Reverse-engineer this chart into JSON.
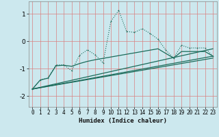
{
  "title": "",
  "xlabel": "Humidex (Indice chaleur)",
  "bg_color": "#cce8ee",
  "grid_color": "#d98080",
  "line_color": "#1a6b5a",
  "xlim": [
    -0.5,
    23.5
  ],
  "ylim": [
    -2.4,
    1.45
  ],
  "xticks": [
    0,
    1,
    2,
    3,
    4,
    5,
    6,
    7,
    8,
    9,
    10,
    11,
    12,
    13,
    14,
    15,
    16,
    17,
    18,
    19,
    20,
    21,
    22,
    23
  ],
  "yticks": [
    -2,
    -1,
    0,
    1
  ],
  "series1_x": [
    0,
    1,
    2,
    3,
    4,
    5,
    6,
    7,
    8,
    9,
    10,
    11,
    12,
    13,
    14,
    15,
    16,
    17,
    18,
    19,
    20,
    21,
    22,
    23
  ],
  "series1_y": [
    -1.75,
    -1.42,
    -1.35,
    -0.87,
    -0.87,
    -1.08,
    -0.52,
    -0.32,
    -0.5,
    -0.8,
    0.72,
    1.12,
    0.35,
    0.32,
    0.45,
    0.28,
    0.07,
    -0.33,
    -0.62,
    -0.15,
    -0.25,
    -0.25,
    -0.25,
    -0.55
  ],
  "series2_x": [
    0,
    1,
    2,
    3,
    4,
    5,
    6,
    7,
    8,
    9,
    10,
    11,
    12,
    13,
    14,
    15,
    16,
    17,
    18,
    19,
    20,
    21,
    22,
    23
  ],
  "series2_y": [
    -1.75,
    -1.42,
    -1.35,
    -0.9,
    -0.88,
    -0.92,
    -0.82,
    -0.74,
    -0.68,
    -0.63,
    -0.58,
    -0.53,
    -0.48,
    -0.43,
    -0.38,
    -0.33,
    -0.28,
    -0.45,
    -0.62,
    -0.38,
    -0.38,
    -0.38,
    -0.38,
    -0.55
  ],
  "line3_x": [
    0,
    23
  ],
  "line3_y": [
    -1.75,
    -0.55
  ],
  "line4_x": [
    0,
    23
  ],
  "line4_y": [
    -1.75,
    -0.28
  ],
  "line5_x": [
    0,
    23
  ],
  "line5_y": [
    -1.75,
    -0.62
  ]
}
